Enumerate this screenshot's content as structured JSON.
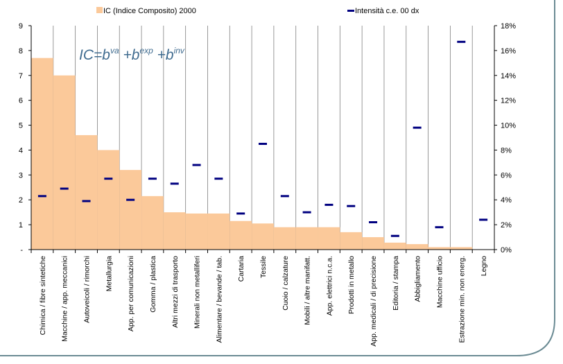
{
  "chart_data": {
    "type": "bar",
    "categories": [
      "Chimica / fibre sintetiche",
      "Macchine / app. meccanici",
      "Autoveicoli / rimorchi",
      "Metallurgia",
      "App. per comunicazioni",
      "Gomma / plastica",
      "Altri mezzi di trasporto",
      "Minerali non metalliferi",
      "Alimentare / bevande / tab.",
      "Cartaria",
      "Tessile",
      "Cuoio / calzature",
      "Mobili / altre manifatt.",
      "App. elettrici n.c.a.",
      "Prodotti in metallo",
      "App. medicali / di precisione",
      "Editoria / stampa",
      "Abbigliamento",
      "Macchine ufficio",
      "Estrazione min. non energ.",
      "Legno"
    ],
    "series": [
      {
        "name": "IC (Indice Composito) 2000",
        "type": "bar",
        "axis": "left",
        "color": "#fbc99a",
        "values": [
          7.7,
          7.0,
          4.6,
          4.0,
          3.2,
          2.15,
          1.5,
          1.45,
          1.45,
          1.15,
          1.05,
          0.9,
          0.9,
          0.9,
          0.7,
          0.5,
          0.28,
          0.22,
          0.1,
          0.1,
          0.0
        ]
      },
      {
        "name": "Intensità c.e. 00 dx",
        "type": "marker",
        "axis": "right",
        "color": "#000080",
        "values": [
          0.043,
          0.049,
          0.039,
          0.057,
          0.04,
          0.057,
          0.053,
          0.068,
          0.057,
          0.029,
          0.085,
          0.043,
          0.03,
          0.036,
          0.035,
          0.022,
          0.011,
          0.098,
          0.018,
          0.167,
          0.024
        ]
      }
    ],
    "y_left": {
      "min": 0,
      "max": 9,
      "ticks": [
        "-",
        "1",
        "2",
        "3",
        "4",
        "5",
        "6",
        "7",
        "8",
        "9"
      ]
    },
    "y_right": {
      "min": 0,
      "max": 0.18,
      "ticks": [
        "0%",
        "2%",
        "4%",
        "6%",
        "8%",
        "10%",
        "12%",
        "14%",
        "16%",
        "18%"
      ]
    },
    "grid": "vertical category separators",
    "legend_position": "top",
    "annotation": {
      "base": "IC=b",
      "sup1": "va",
      "mid1": " +b",
      "sup2": "exp",
      "mid2": " +b",
      "sup3": "inv"
    }
  }
}
